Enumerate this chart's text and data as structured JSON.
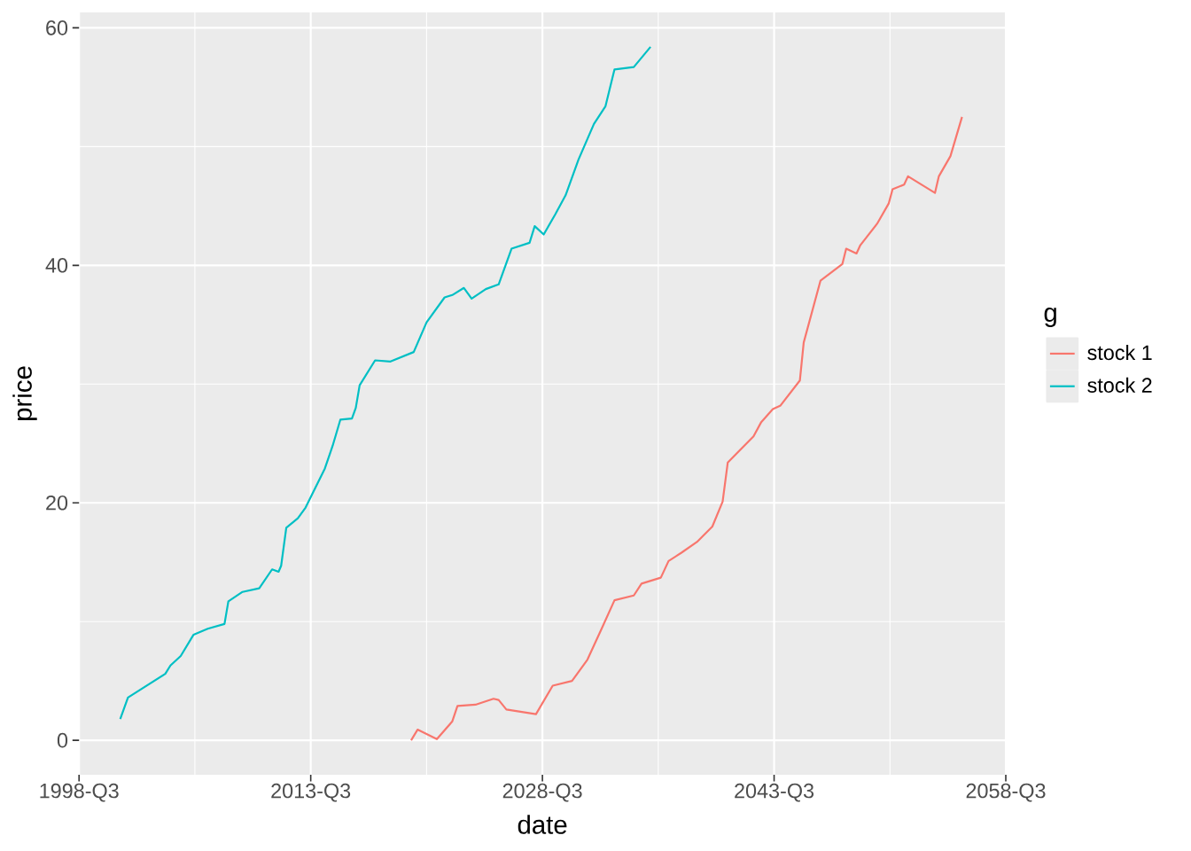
{
  "chart_data": {
    "type": "line",
    "xlabel": "date",
    "ylabel": "price",
    "legend_title": "g",
    "xlim": [
      "1998-07",
      "2058-07"
    ],
    "xticks": [
      {
        "value": "1998-07",
        "label": "1998-Q3"
      },
      {
        "value": "2013-07",
        "label": "2013-Q3"
      },
      {
        "value": "2028-07",
        "label": "2028-Q3"
      },
      {
        "value": "2043-07",
        "label": "2043-Q3"
      },
      {
        "value": "2058-07",
        "label": "2058-Q3"
      }
    ],
    "ylim": [
      -2.9,
      61.3
    ],
    "yticks": [
      0,
      20,
      40,
      60
    ],
    "grid": true,
    "legend": "right",
    "series": [
      {
        "name": "stock 1",
        "color": "#f8766d",
        "x": [
          "2020-01",
          "2020-06",
          "2021-09",
          "2022-09",
          "2023-01",
          "2024-03",
          "2025-05",
          "2025-09",
          "2026-03",
          "2028-02",
          "2029-03",
          "2030-06",
          "2031-06",
          "2032-05",
          "2033-03",
          "2034-06",
          "2034-12",
          "2036-03",
          "2036-09",
          "2037-07",
          "2038-07",
          "2039-07",
          "2040-03",
          "2040-07",
          "2042-03",
          "2042-09",
          "2043-06",
          "2043-12",
          "2045-03",
          "2045-06",
          "2046-07",
          "2047-12",
          "2048-03",
          "2048-11",
          "2049-02",
          "2050-03",
          "2050-12",
          "2051-03",
          "2051-12",
          "2052-03",
          "2053-12",
          "2054-03",
          "2054-12",
          "2055-09"
        ],
        "values": [
          0.0,
          0.9,
          0.1,
          1.6,
          2.9,
          3.0,
          3.5,
          3.4,
          2.6,
          2.2,
          4.6,
          5.0,
          6.8,
          9.4,
          11.8,
          12.2,
          13.2,
          13.7,
          15.1,
          15.8,
          16.7,
          18.0,
          20.1,
          23.4,
          25.6,
          26.8,
          27.9,
          28.2,
          30.3,
          33.5,
          38.7,
          40.1,
          41.4,
          41.0,
          41.7,
          43.5,
          45.2,
          46.4,
          46.8,
          47.5,
          46.1,
          47.5,
          49.2,
          52.5
        ]
      },
      {
        "name": "stock 2",
        "color": "#00bfc4",
        "x": [
          "2001-03",
          "2001-09",
          "2004-02",
          "2004-06",
          "2005-02",
          "2005-12",
          "2006-11",
          "2007-12",
          "2008-03",
          "2009-02",
          "2010-03",
          "2011-01",
          "2011-06",
          "2011-08",
          "2011-12",
          "2012-09",
          "2013-03",
          "2014-06",
          "2014-12",
          "2015-06",
          "2016-03",
          "2016-06",
          "2016-09",
          "2017-09",
          "2018-09",
          "2020-03",
          "2021-01",
          "2022-03",
          "2022-09",
          "2023-06",
          "2023-12",
          "2024-11",
          "2025-09",
          "2026-07",
          "2027-09",
          "2028-01",
          "2028-08",
          "2029-05",
          "2030-01",
          "2030-11",
          "2031-11",
          "2032-08",
          "2033-03",
          "2034-06",
          "2035-07"
        ],
        "values": [
          1.8,
          3.6,
          5.6,
          6.3,
          7.1,
          8.9,
          9.4,
          9.8,
          11.7,
          12.5,
          12.8,
          14.4,
          14.2,
          14.7,
          17.9,
          18.7,
          19.6,
          22.9,
          24.8,
          27.0,
          27.1,
          28.0,
          29.9,
          32.0,
          31.9,
          32.7,
          35.2,
          37.3,
          37.5,
          38.1,
          37.2,
          38.0,
          38.4,
          41.4,
          41.9,
          43.3,
          42.6,
          44.3,
          45.9,
          48.9,
          51.9,
          53.4,
          56.5,
          56.7,
          58.4
        ]
      }
    ]
  }
}
